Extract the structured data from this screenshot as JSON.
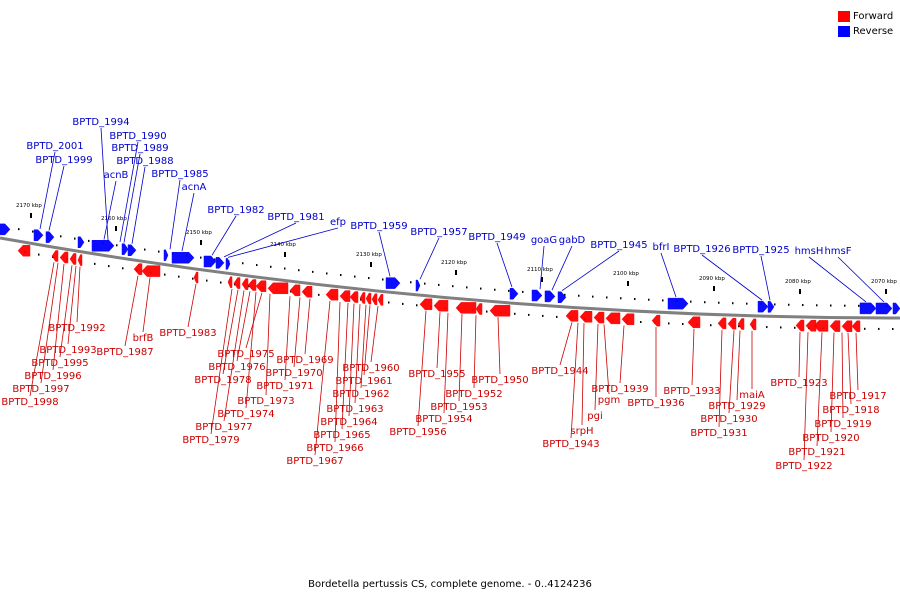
{
  "legend": {
    "forward_label": "Forward",
    "reverse_label": "Reverse",
    "forward_color": "#ff0000",
    "reverse_color": "#0000ff"
  },
  "caption": "Bordetella pertussis CS, complete genome. - 0..4124236",
  "colors": {
    "forward_text": "#cc0000",
    "reverse_text": "#0000cc",
    "backbone": "#808080"
  },
  "scale_labels": [
    "2170 kbp",
    "2160 kbp",
    "2150 kbp",
    "2140 kbp",
    "2130 kbp",
    "2120 kbp",
    "2110 kbp",
    "2100 kbp",
    "2090 kbp",
    "2080 kbp",
    "2070 kbp"
  ],
  "reverse_labels": [
    "BPTD_1994",
    "BPTD_1990",
    "BPTD_1989",
    "BPTD_2001",
    "BPTD_1988",
    "BPTD_1999",
    "acnB",
    "BPTD_1985",
    "acnA",
    "BPTD_1982",
    "BPTD_1981",
    "efp",
    "BPTD_1959",
    "BPTD_1957",
    "BPTD_1949",
    "goaG",
    "gabD",
    "BPTD_1945",
    "bfrI",
    "BPTD_1926",
    "BPTD_1925",
    "hmsH",
    "hmsF"
  ],
  "forward_labels": [
    "BPTD_1992",
    "BPTD_1993",
    "BPTD_1995",
    "BPTD_1996",
    "BPTD_1997",
    "BPTD_1998",
    "brfB",
    "BPTD_1987",
    "BPTD_1983",
    "BPTD_1975",
    "BPTD_1976",
    "BPTD_1978",
    "BPTD_1977",
    "BPTD_1979",
    "BPTD_1974",
    "BPTD_1973",
    "BPTD_1971",
    "BPTD_1970",
    "BPTD_1969",
    "BPTD_1960",
    "BPTD_1961",
    "BPTD_1962",
    "BPTD_1963",
    "BPTD_1964",
    "BPTD_1965",
    "BPTD_1966",
    "BPTD_1967",
    "BPTD_1955",
    "BPTD_1952",
    "BPTD_1953",
    "BPTD_1954",
    "BPTD_1956",
    "BPTD_1950",
    "BPTD_1944",
    "srpH",
    "BPTD_1943",
    "pgi",
    "pgm",
    "BPTD_1939",
    "BPTD_1936",
    "BPTD_1933",
    "maiA",
    "BPTD_1929",
    "BPTD_1930",
    "BPTD_1931",
    "BPTD_1923",
    "BPTD_1917",
    "BPTD_1918",
    "BPTD_1919",
    "BPTD_1920",
    "BPTD_1921",
    "BPTD_1922"
  ]
}
